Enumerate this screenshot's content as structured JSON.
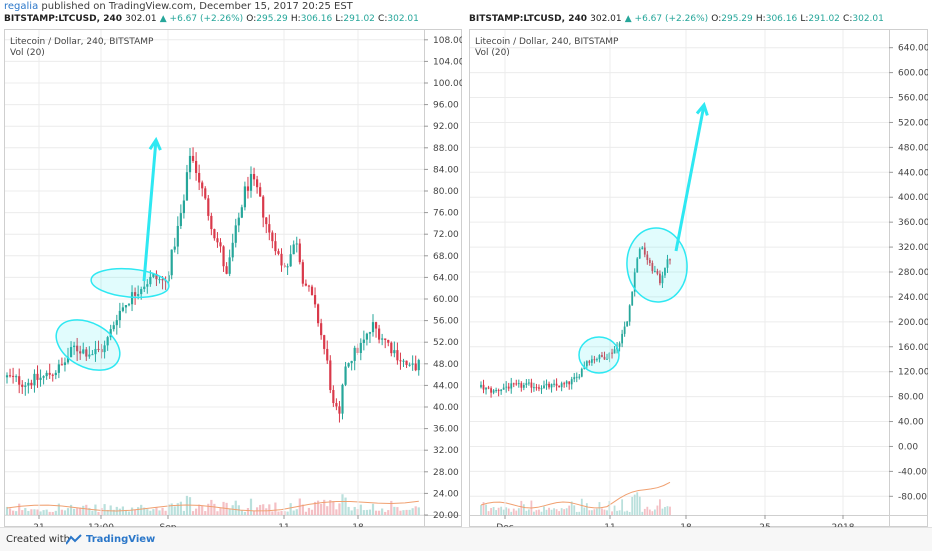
{
  "header": {
    "author": "regalia",
    "published_text": "published on TradingView.com, December 15, 2017 20:25 EST"
  },
  "left_chart": {
    "symbol_line": {
      "symbol": "BITSTAMP:LTCUSD, 240",
      "last": "302.01",
      "change": "▲ +6.67 (+2.26%)",
      "o_label": "O:",
      "o": "295.29",
      "h_label": "H:",
      "h": "306.16",
      "l_label": "L:",
      "l": "291.02",
      "c_label": "C:",
      "c": "302.01"
    },
    "title": "Litecoin / Dollar, 240, BITSTAMP",
    "vol_label": "Vol (20)"
  },
  "right_chart": {
    "symbol_line": {
      "symbol": "BITSTAMP:LTCUSD, 240",
      "last": "302.01",
      "change": "▲ +6.67 (+2.26%)",
      "o_label": "O:",
      "o": "295.29",
      "h_label": "H:",
      "h": "306.16",
      "l_label": "L:",
      "l": "291.02",
      "c_label": "C:",
      "c": "302.01"
    },
    "title": "Litecoin / Dollar, 240, BITSTAMP",
    "vol_label": "Vol (20)"
  },
  "footer": {
    "created_with": "Created with",
    "brand": "TradingView"
  },
  "colors": {
    "up": "#26a69a",
    "down": "#d9394a",
    "annotation": "#2ee8f2",
    "volume_ma": "#f0a070",
    "grid": "#ececec"
  },
  "chart_data": [
    {
      "type": "candlestick",
      "title": "Litecoin / Dollar, 240, BITSTAMP",
      "y_ticks": [
        "108.00",
        "104.00",
        "100.00",
        "96.00",
        "92.00",
        "88.00",
        "84.00",
        "80.00",
        "76.00",
        "72.00",
        "68.00",
        "64.00",
        "60.00",
        "56.00",
        "52.00",
        "48.00",
        "44.00",
        "40.00",
        "36.00",
        "32.00",
        "28.00",
        "24.00",
        "20.00"
      ],
      "x_ticks": [
        "21",
        "12:00",
        "Sep",
        "11",
        "18"
      ],
      "ylim": [
        20,
        110
      ],
      "approx_close_path": [
        [
          0,
          45.5
        ],
        [
          6,
          44.5
        ],
        [
          12,
          45.5
        ],
        [
          18,
          47.5
        ],
        [
          22,
          51
        ],
        [
          28,
          50
        ],
        [
          32,
          51
        ],
        [
          36,
          57
        ],
        [
          40,
          60
        ],
        [
          44,
          62.5
        ],
        [
          48,
          64
        ],
        [
          52,
          63
        ],
        [
          54,
          68
        ],
        [
          58,
          78
        ],
        [
          60,
          87
        ],
        [
          62,
          84
        ],
        [
          64,
          80
        ],
        [
          66,
          76
        ],
        [
          68,
          72
        ],
        [
          70,
          69
        ],
        [
          72,
          64
        ],
        [
          74,
          70
        ],
        [
          76,
          75
        ],
        [
          78,
          80
        ],
        [
          80,
          82
        ],
        [
          82,
          80
        ],
        [
          86,
          72
        ],
        [
          88,
          70
        ],
        [
          90,
          66
        ],
        [
          92,
          67
        ],
        [
          95,
          71
        ],
        [
          97,
          64
        ],
        [
          100,
          60
        ],
        [
          102,
          56
        ],
        [
          105,
          48
        ],
        [
          107,
          40
        ],
        [
          109,
          38
        ],
        [
          111,
          48
        ],
        [
          114,
          50
        ],
        [
          117,
          52
        ],
        [
          120,
          55
        ],
        [
          123,
          53
        ],
        [
          126,
          51
        ],
        [
          129,
          49
        ],
        [
          132,
          47
        ],
        [
          135,
          48
        ]
      ],
      "volume_ma_visible": true,
      "annotations": [
        "ellipse around 48–54",
        "ellipse around 61–66",
        "upward arrow to ~90"
      ]
    },
    {
      "type": "candlestick",
      "title": "Litecoin / Dollar, 240, BITSTAMP",
      "y_ticks": [
        "640.00",
        "600.00",
        "560.00",
        "520.00",
        "480.00",
        "440.00",
        "400.00",
        "360.00",
        "320.00",
        "280.00",
        "240.00",
        "200.00",
        "160.00",
        "120.00",
        "80.00",
        "40.00",
        "0.00",
        "-40.00",
        "-80.00"
      ],
      "x_ticks": [
        "Dec",
        "11",
        "18",
        "25",
        "2018"
      ],
      "ylim": [
        -110,
        670
      ],
      "approx_close_path": [
        [
          0,
          95
        ],
        [
          5,
          88
        ],
        [
          10,
          96
        ],
        [
          15,
          97
        ],
        [
          20,
          98
        ],
        [
          25,
          96
        ],
        [
          30,
          97
        ],
        [
          34,
          100
        ],
        [
          38,
          110
        ],
        [
          42,
          138
        ],
        [
          46,
          142
        ],
        [
          50,
          145
        ],
        [
          54,
          160
        ],
        [
          58,
          200
        ],
        [
          61,
          280
        ],
        [
          63,
          320
        ],
        [
          65,
          310
        ],
        [
          67,
          290
        ],
        [
          69,
          280
        ],
        [
          71,
          265
        ],
        [
          73,
          290
        ],
        [
          75,
          302
        ]
      ],
      "volume_ma_visible": true,
      "annotations": [
        "ellipse around 120–160",
        "ellipse around 250–330",
        "upward arrow to ~560"
      ]
    }
  ]
}
